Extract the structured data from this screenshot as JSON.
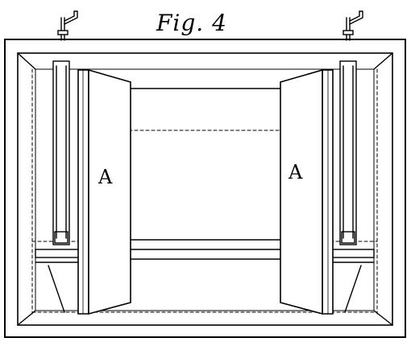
{
  "figure": {
    "title": "Fig. 4",
    "labels": {
      "left_door": "A",
      "right_door": "A"
    }
  },
  "colors": {
    "ink": "#000000",
    "paper": "#ffffff"
  }
}
